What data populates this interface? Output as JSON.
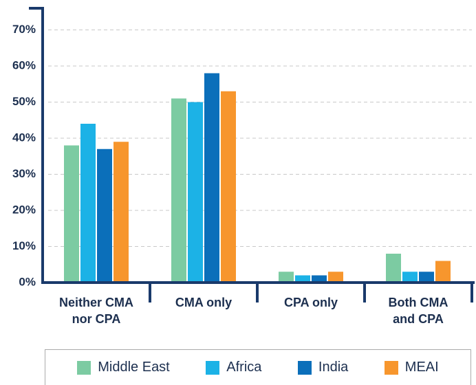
{
  "chart_data": {
    "type": "bar",
    "categories": [
      "Neither CMA\nnor CPA",
      "CMA only",
      "CPA only",
      "Both CMA\nand CPA"
    ],
    "series": [
      {
        "name": "Middle East",
        "color": "#7ccba2",
        "values": [
          38,
          51,
          3,
          8
        ]
      },
      {
        "name": "Africa",
        "color": "#1cb2e6",
        "values": [
          44,
          50,
          2,
          3
        ]
      },
      {
        "name": "India",
        "color": "#0b6fba",
        "values": [
          37,
          58,
          2,
          3
        ]
      },
      {
        "name": "MEAI",
        "color": "#f7962d",
        "values": [
          39,
          53,
          3,
          6
        ]
      }
    ],
    "ylim": [
      0,
      76
    ],
    "yticks": [
      {
        "value": 0,
        "label": "0%"
      },
      {
        "value": 10,
        "label": "10%"
      },
      {
        "value": 20,
        "label": "20%"
      },
      {
        "value": 30,
        "label": "30%"
      },
      {
        "value": 40,
        "label": "40%"
      },
      {
        "value": 50,
        "label": "50%"
      },
      {
        "value": 60,
        "label": "60%"
      },
      {
        "value": 70,
        "label": "70%"
      }
    ],
    "grid": true,
    "legend": "bottom"
  }
}
